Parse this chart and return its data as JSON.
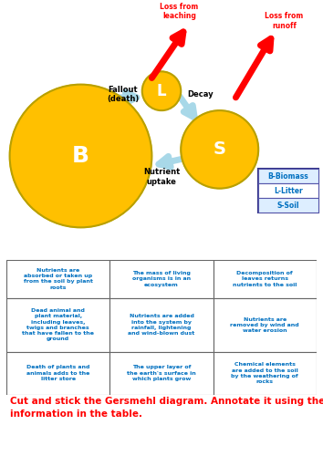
{
  "bg_color": "#ffffff",
  "gold_color": "#FFC000",
  "gold_edge": "#B8A000",
  "arrow_color": "#A8D8E8",
  "red_arrow_color": "#FF0000",
  "blue_text": "#0070C0",
  "red_text": "#FF0000",
  "black_text": "#000000",
  "B_label": "B",
  "L_label": "L",
  "S_label": "S",
  "legend_items": [
    "B-Biomass",
    "L-Litter",
    "S-Soil"
  ],
  "labels": {
    "fallout": "Fallout\n(death)",
    "decay": "Decay",
    "nutrient_uptake": "Nutrient\nuptake",
    "loss_leaching": "Loss from\nleaching",
    "loss_runoff": "Loss from\nrunoff"
  },
  "table_data": [
    [
      "Nutrients are\nabsorbed or taken up\nfrom the soil by plant\nroots",
      "The mass of living\norganisms is in an\necosystem",
      "Decomposition of\nleaves returns\nnutrients to the soil"
    ],
    [
      "Dead animal and\nplant material,\nincluding leaves,\ntwigs and branches\nthat have fallen to the\nground",
      "Nutrients are added\ninto the system by\nrainfall, lightening\nand wind-blown dust",
      "Nutrients are\nremoved by wind and\nwater erosion"
    ],
    [
      "Death of plants and\nanimals adds to the\nlitter store",
      "The upper layer of\nthe earth's surface in\nwhich plants grow",
      "Chemical elements\nare added to the soil\nby the weathering of\nrocks"
    ]
  ],
  "footer_text": "Cut and stick the Gersmehl diagram. Annotate it using the\ninformation in the table."
}
